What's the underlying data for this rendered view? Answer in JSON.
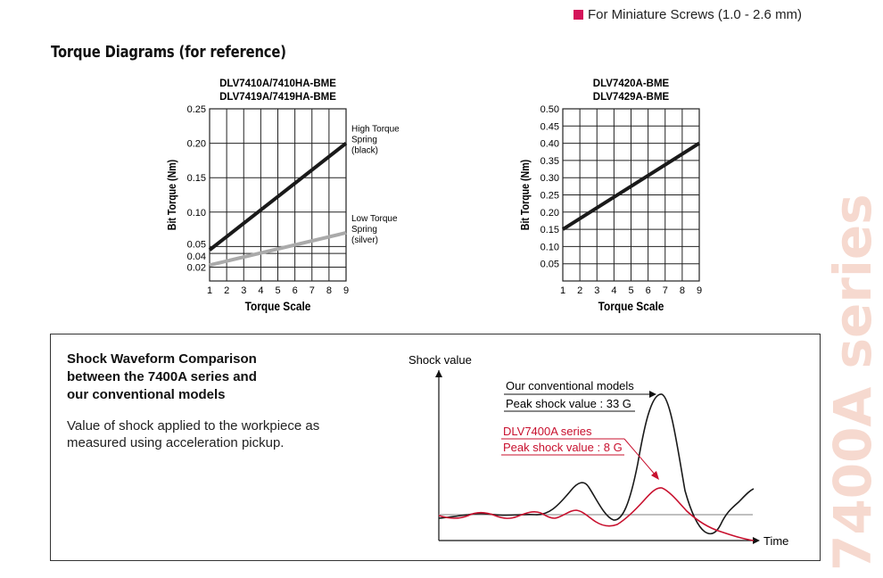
{
  "header": {
    "tag_text": "For Miniature Screws (1.0 - 2.6 mm)",
    "tag_color": "#d4145a"
  },
  "section": {
    "title": "Torque Diagrams (for reference)"
  },
  "chart_data": [
    {
      "type": "line",
      "title_lines": [
        "DLV7410A/7410HA-BME",
        "DLV7419A/7419HA-BME"
      ],
      "xlabel": "Torque Scale",
      "ylabel": "Bit Torque (Nm)",
      "xlim": [
        1,
        9
      ],
      "ylim": [
        0.0,
        0.25
      ],
      "x_ticks": [
        1,
        2,
        3,
        4,
        5,
        6,
        7,
        8,
        9
      ],
      "y_ticks": [
        0.02,
        0.04,
        0.05,
        0.1,
        0.15,
        0.2,
        0.25
      ],
      "y_tick_labels": [
        "0.02",
        "0.04",
        "0.05",
        "0.10",
        "0.15",
        "0.20",
        "0.25"
      ],
      "grid": true,
      "series": [
        {
          "name_lines": [
            "High Torque",
            "Spring",
            "(black)"
          ],
          "color": "#1a1a1a",
          "x": [
            1,
            9
          ],
          "y": [
            0.045,
            0.2
          ]
        },
        {
          "name_lines": [
            "Low Torque",
            "Spring",
            "(silver)"
          ],
          "color": "#aaaaaa",
          "x": [
            1,
            9
          ],
          "y": [
            0.023,
            0.07
          ]
        }
      ]
    },
    {
      "type": "line",
      "title_lines": [
        "DLV7420A-BME",
        "DLV7429A-BME"
      ],
      "xlabel": "Torque Scale",
      "ylabel": "Bit Torque (Nm)",
      "xlim": [
        1,
        9
      ],
      "ylim": [
        0.0,
        0.5
      ],
      "x_ticks": [
        1,
        2,
        3,
        4,
        5,
        6,
        7,
        8,
        9
      ],
      "y_ticks": [
        0.05,
        0.1,
        0.15,
        0.2,
        0.25,
        0.3,
        0.35,
        0.4,
        0.45,
        0.5
      ],
      "y_tick_labels": [
        "0.05",
        "0.10",
        "0.15",
        "0.20",
        "0.25",
        "0.30",
        "0.35",
        "0.40",
        "0.45",
        "0.50"
      ],
      "grid": true,
      "series": [
        {
          "color": "#1a1a1a",
          "x": [
            1,
            9
          ],
          "y": [
            0.15,
            0.4
          ]
        }
      ]
    },
    {
      "type": "line",
      "ylabel": "Shock value",
      "xlabel": "Time",
      "baseline_color": "#999999",
      "series": [
        {
          "label_lines": [
            "Our conventional models",
            "Peak shock value : 33 G"
          ],
          "color": "#1a1a1a",
          "peak_g": 33
        },
        {
          "label_lines": [
            "DLV7400A series",
            "Peak shock value : 8 G"
          ],
          "color": "#c8102e",
          "peak_g": 8
        }
      ]
    }
  ],
  "shock_box": {
    "title_lines": [
      "Shock Waveform Comparison",
      "between the 7400A series and",
      "our conventional models"
    ],
    "description": "Value of shock applied to the workpiece as measured using acceleration pickup."
  },
  "watermark": {
    "text": "7400A series",
    "color": "#f6d9cf"
  }
}
